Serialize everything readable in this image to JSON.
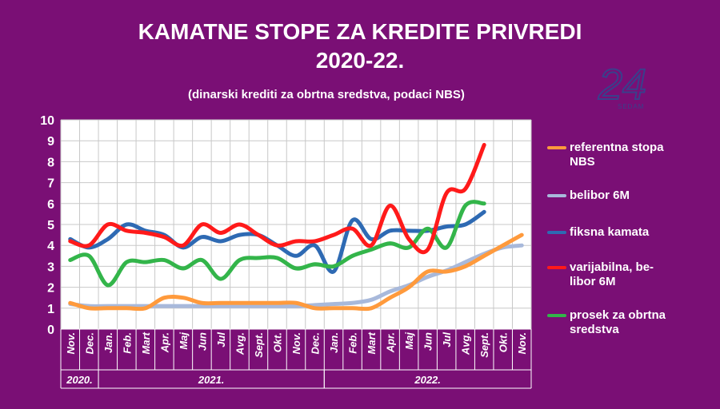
{
  "header": {
    "title_line1": "KAMATNE STOPE ZA KREDITE PRIVREDI",
    "title_line2": "2020-22.",
    "subtitle": "(dinarski krediti za obrtna sredstva, podaci NBS)",
    "logo_text": "24",
    "logo_subtext": "SEDAM"
  },
  "colors": {
    "background": "#7a0f75",
    "plot_area": "#ffffff",
    "grid": "#c8c8c8"
  },
  "chart_data": {
    "type": "line",
    "title": "KAMATNE STOPE ZA KREDITE PRIVREDI 2020-22.",
    "subtitle": "(dinarski krediti za obrtna sredstva, podaci NBS)",
    "ylim": [
      0,
      10
    ],
    "yticks": [
      "0",
      "1",
      "2",
      "3",
      "4",
      "5",
      "6",
      "7",
      "8",
      "9",
      "10"
    ],
    "categories": [
      "Nov.",
      "Dec.",
      "Jan.",
      "Feb.",
      "Mart",
      "Apr.",
      "Maj",
      "Jun",
      "Jul",
      "Avg.",
      "Sept.",
      "Okt.",
      "Nov.",
      "Dec.",
      "Jan.",
      "Feb.",
      "Mart",
      "Apr.",
      "Maj",
      "Jun",
      "Jul",
      "Avg.",
      "Sept.",
      "Okt.",
      "Nov."
    ],
    "year_groups": [
      {
        "label": "2020.",
        "start": 0,
        "end": 1
      },
      {
        "label": "2021.",
        "start": 2,
        "end": 13
      },
      {
        "label": "2022.",
        "start": 14,
        "end": 24
      }
    ],
    "grid": true,
    "legend_position": "right",
    "series": [
      {
        "name": "referentna stopa NBS",
        "legend_lines": [
          "referentna stopa",
          "NBS"
        ],
        "color": "#ff9a3c",
        "values": [
          1.25,
          1.0,
          1.0,
          1.0,
          1.0,
          1.5,
          1.5,
          1.25,
          1.25,
          1.25,
          1.25,
          1.25,
          1.25,
          1.0,
          1.0,
          1.0,
          1.0,
          1.5,
          2.0,
          2.75,
          2.75,
          3.0,
          3.5,
          4.0,
          4.5
        ]
      },
      {
        "name": "belibor 6M",
        "legend_lines": [
          "belibor 6M"
        ],
        "color": "#a8b9db",
        "values": [
          1.2,
          1.1,
          1.1,
          1.1,
          1.1,
          1.1,
          1.1,
          1.1,
          1.1,
          1.1,
          1.1,
          1.1,
          1.1,
          1.15,
          1.2,
          1.25,
          1.4,
          1.8,
          2.1,
          2.5,
          2.8,
          3.2,
          3.6,
          3.9,
          4.0
        ]
      },
      {
        "name": "fiksna kamata",
        "legend_lines": [
          "fiksna kamata"
        ],
        "color": "#2e6ab3",
        "values": [
          4.3,
          3.9,
          4.3,
          5.0,
          4.7,
          4.5,
          3.9,
          4.4,
          4.2,
          4.5,
          4.5,
          4.0,
          3.5,
          4.0,
          2.75,
          5.2,
          4.3,
          4.7,
          4.7,
          4.7,
          4.9,
          5.0,
          5.6,
          null,
          null
        ]
      },
      {
        "name": "varijabilna, belibor 6M",
        "legend_lines": [
          "varijabilna, be-",
          "libor 6M"
        ],
        "color": "#ff1a1a",
        "values": [
          4.2,
          4.0,
          5.0,
          4.7,
          4.6,
          4.4,
          4.0,
          5.0,
          4.6,
          5.0,
          4.5,
          4.0,
          4.2,
          4.2,
          4.5,
          4.8,
          4.0,
          5.9,
          4.3,
          3.8,
          6.5,
          6.7,
          8.8,
          null,
          null
        ]
      },
      {
        "name": "prosek za obrtna sredstva",
        "legend_lines": [
          "prosek za obrtna",
          "sredstva"
        ],
        "color": "#33b54a",
        "values": [
          3.3,
          3.5,
          2.1,
          3.2,
          3.2,
          3.3,
          2.9,
          3.3,
          2.4,
          3.3,
          3.4,
          3.4,
          2.9,
          3.1,
          3.0,
          3.5,
          3.8,
          4.1,
          3.9,
          4.8,
          3.9,
          5.9,
          6.0,
          null,
          null
        ]
      }
    ]
  }
}
